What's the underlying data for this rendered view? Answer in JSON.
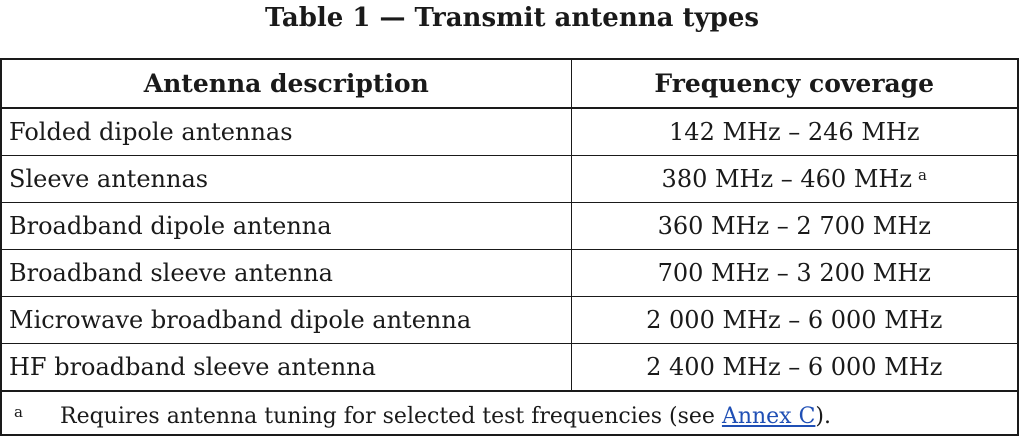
{
  "title": "Table 1 — Transmit antenna types",
  "table": {
    "headers": [
      "Antenna description",
      "Frequency coverage"
    ],
    "rows": [
      {
        "description": "Folded dipole antennas",
        "frequency": "142 MHz – 246 MHz",
        "note": ""
      },
      {
        "description": "Sleeve antennas",
        "frequency": "380 MHz – 460 MHz",
        "note": "a"
      },
      {
        "description": "Broadband dipole antenna",
        "frequency": "360 MHz – 2 700 MHz",
        "note": ""
      },
      {
        "description": "Broadband sleeve antenna",
        "frequency": "700 MHz – 3 200 MHz",
        "note": ""
      },
      {
        "description": "Microwave broadband dipole antenna",
        "frequency": "2 000 MHz – 6 000 MHz",
        "note": ""
      },
      {
        "description": "HF broadband sleeve antenna",
        "frequency": "2 400 MHz – 6 000 MHz",
        "note": ""
      }
    ]
  },
  "footnote": {
    "marker": "a",
    "text_before": "Requires antenna tuning for selected test frequencies (see ",
    "link_text": "Annex C",
    "text_after": ")."
  },
  "colors": {
    "link": "#1f4fb5",
    "border": "#1a1a1a"
  }
}
